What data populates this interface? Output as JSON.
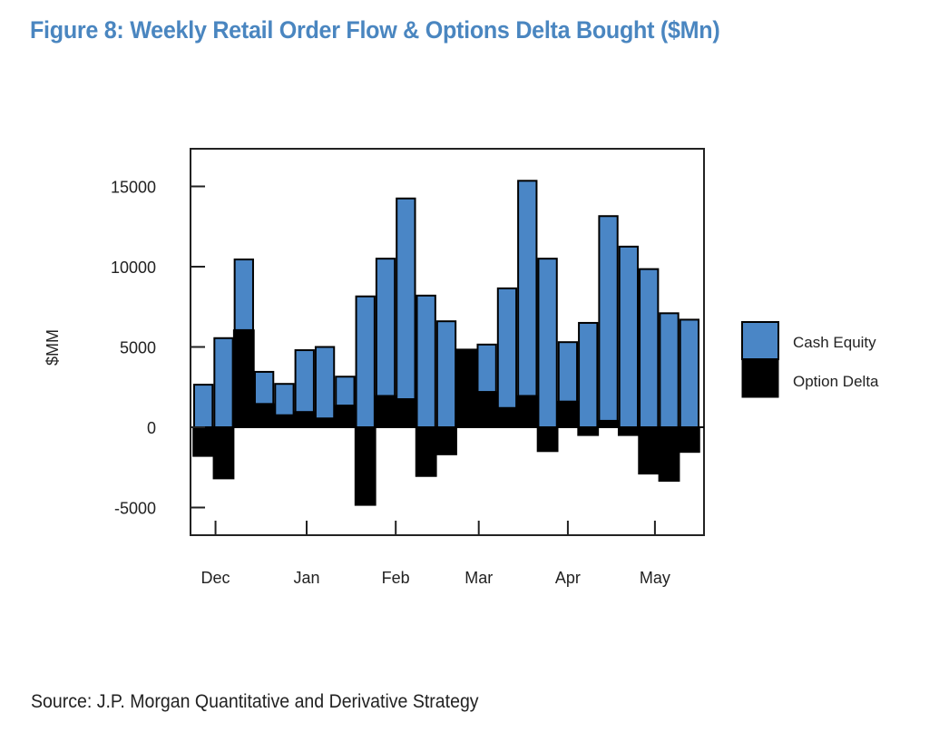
{
  "title": "Figure 8: Weekly Retail Order Flow & Options Delta Bought ($Mn)",
  "source": "Source: J.P. Morgan Quantitative and Derivative Strategy",
  "colors": {
    "title": "#4a86c0",
    "cash_equity": "#4a86c6",
    "option_delta": "#000000"
  },
  "chart_data": {
    "type": "bar",
    "stacked": true,
    "title": "Figure 8: Weekly Retail Order Flow & Options Delta Bought ($Mn)",
    "xlabel": "",
    "ylabel": "$MM",
    "ylim": [
      -6700,
      17700
    ],
    "yticks": [
      -5000,
      0,
      5000,
      10000,
      15000
    ],
    "ytick_labels": [
      "-5000",
      "0",
      "5000",
      "10000",
      "15000"
    ],
    "xtick_labels": [
      "Dec",
      "Jan",
      "Feb",
      "Mar",
      "Apr",
      "May"
    ],
    "xtick_week_index": [
      1.1,
      5.6,
      10.0,
      14.1,
      18.5,
      22.8
    ],
    "grid": false,
    "legend": "right",
    "weeks": 25,
    "series": [
      {
        "name": "Cash Equity",
        "values": [
          2650,
          5550,
          4400,
          2000,
          1950,
          3850,
          4450,
          1800,
          8150,
          8550,
          12500,
          8200,
          6600,
          0,
          2950,
          7450,
          13400,
          10500,
          3700,
          6500,
          12750,
          11250,
          9850,
          7100,
          6700
        ]
      },
      {
        "name": "Option Delta",
        "values": [
          -1800,
          -3200,
          6050,
          1450,
          750,
          950,
          550,
          1350,
          -4850,
          1950,
          1750,
          -3050,
          -1700,
          4850,
          2200,
          1200,
          1950,
          -1500,
          1600,
          -500,
          400,
          -500,
          -2900,
          -3350,
          -1550
        ]
      }
    ]
  }
}
